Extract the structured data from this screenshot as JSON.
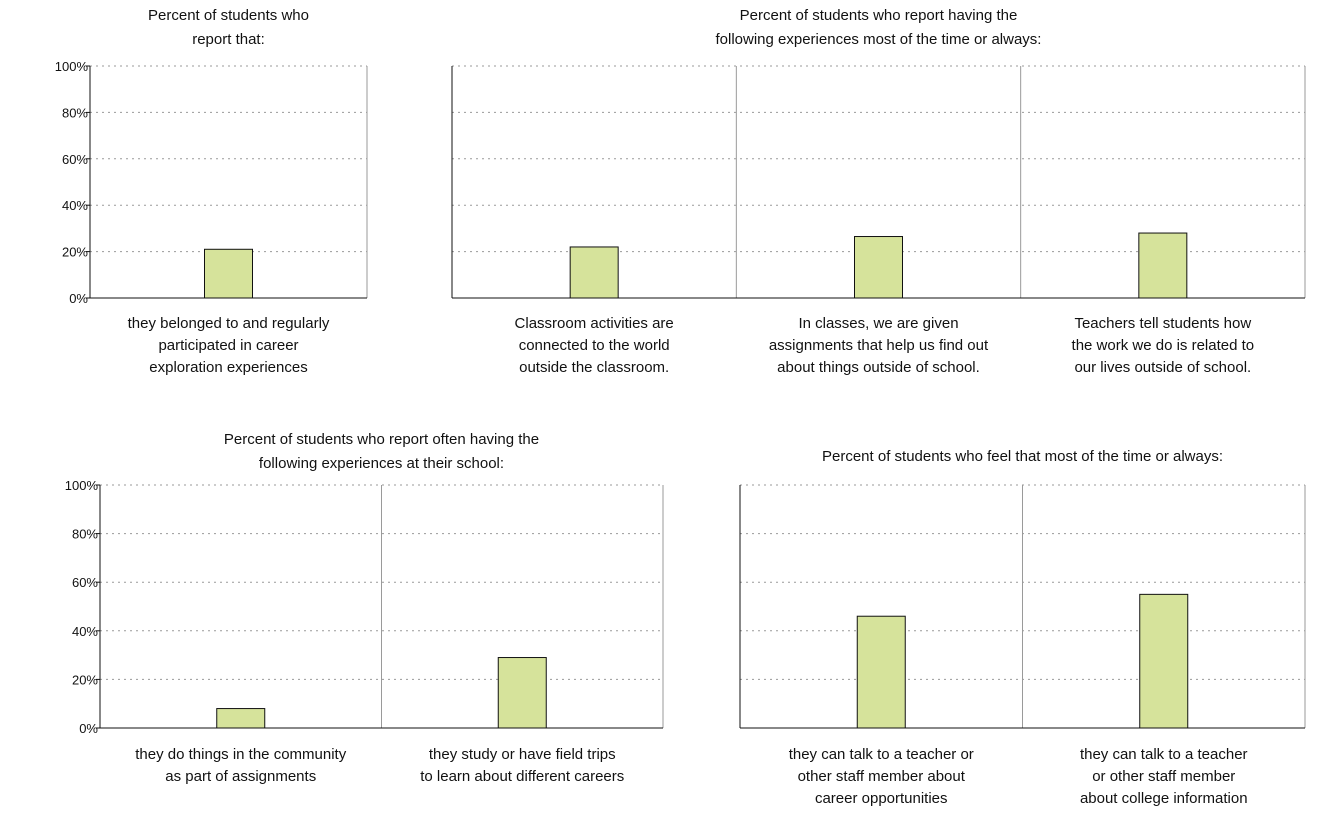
{
  "colors": {
    "bar_fill": "#d6e39b",
    "bar_stroke": "#111111",
    "grid": "#9a9a9a",
    "axis": "#111111",
    "divider": "#9a9a9a"
  },
  "y_ticks": [
    "0%",
    "20%",
    "40%",
    "60%",
    "80%",
    "100%"
  ],
  "chart_data": [
    {
      "type": "bar",
      "title": [
        "Percent of students who",
        "report that:"
      ],
      "ylim": [
        0,
        100
      ],
      "grid": true,
      "categories": [
        {
          "label": [
            "they belonged to and regularly",
            "participated in career",
            "exploration experiences"
          ],
          "value": 21
        }
      ]
    },
    {
      "type": "bar",
      "title": [
        "Percent of students who report having the",
        "following experiences most of the time or always:"
      ],
      "ylim": [
        0,
        100
      ],
      "grid": true,
      "categories": [
        {
          "label": [
            "Classroom activities are",
            "connected to the world",
            "outside the classroom."
          ],
          "value": 22
        },
        {
          "label": [
            "In classes, we are given",
            "assignments that help us find out",
            "about things outside of school."
          ],
          "value": 26.5
        },
        {
          "label": [
            "Teachers tell students how",
            "the work we do is related to",
            "our lives outside of school."
          ],
          "value": 28
        }
      ]
    },
    {
      "type": "bar",
      "title": [
        "Percent of students who report often having the",
        "following experiences at their school:"
      ],
      "ylim": [
        0,
        100
      ],
      "grid": true,
      "categories": [
        {
          "label": [
            "they do things in the community",
            "as part of assignments"
          ],
          "value": 8
        },
        {
          "label": [
            "they study or have field trips",
            "to learn about different careers"
          ],
          "value": 29
        }
      ]
    },
    {
      "type": "bar",
      "title": [
        "Percent of students who feel that most of the time or always:"
      ],
      "ylim": [
        0,
        100
      ],
      "grid": true,
      "categories": [
        {
          "label": [
            "they can talk to a teacher or",
            "other staff member about",
            "career opportunities"
          ],
          "value": 46
        },
        {
          "label": [
            "they can talk to a teacher",
            "or other staff member",
            "about college information"
          ],
          "value": 55
        }
      ]
    }
  ]
}
